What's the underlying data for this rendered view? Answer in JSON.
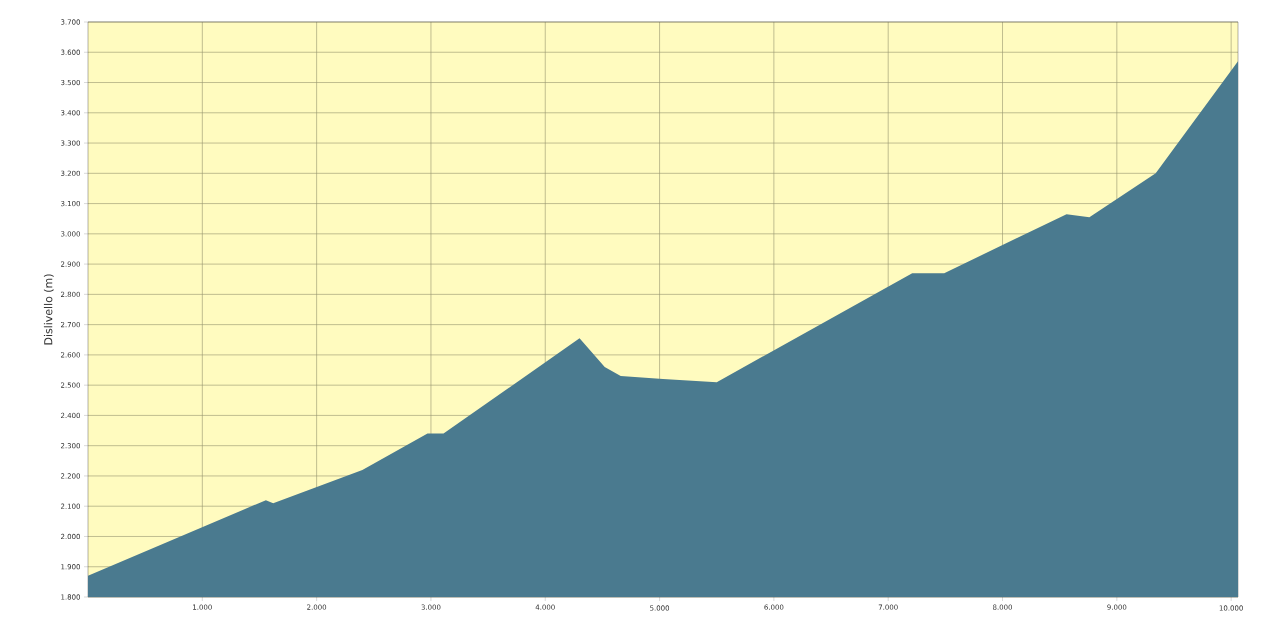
{
  "chart_data": {
    "type": "area",
    "ylabel": "Dislivello (m)",
    "color": "#4a7a8f",
    "x": [
      0,
      1556,
      1620,
      2400,
      2970,
      3110,
      4300,
      4520,
      4660,
      5030,
      5500,
      7210,
      7490,
      8560,
      8760,
      9340,
      10060
    ],
    "values": [
      1870,
      2120,
      2110,
      2220,
      2340,
      2340,
      2655,
      2560,
      2530,
      2520,
      2510,
      2870,
      2870,
      3065,
      3055,
      3200,
      3570
    ],
    "xlim": [
      0,
      10060
    ],
    "ylim": [
      1800,
      3700
    ],
    "xticks": [
      {
        "value": 1000,
        "label": "1.000"
      },
      {
        "value": 2000,
        "label": "2.000"
      },
      {
        "value": 3000,
        "label": "3.000"
      },
      {
        "value": 4000,
        "label": "4.000"
      },
      {
        "value": 5000,
        "label": "5.000"
      },
      {
        "value": 6000,
        "label": "6.000"
      },
      {
        "value": 7000,
        "label": "7.000"
      },
      {
        "value": 8000,
        "label": "8.000"
      },
      {
        "value": 9000,
        "label": "9.000"
      },
      {
        "value": 10000,
        "label": "10.000"
      }
    ],
    "yticks": [
      {
        "value": 1800,
        "label": "1.800"
      },
      {
        "value": 1900,
        "label": "1.900"
      },
      {
        "value": 2000,
        "label": "2.000"
      },
      {
        "value": 2100,
        "label": "2.100"
      },
      {
        "value": 2200,
        "label": "2.200"
      },
      {
        "value": 2300,
        "label": "2.300"
      },
      {
        "value": 2400,
        "label": "2.400"
      },
      {
        "value": 2500,
        "label": "2.500"
      },
      {
        "value": 2600,
        "label": "2.600"
      },
      {
        "value": 2700,
        "label": "2.700"
      },
      {
        "value": 2800,
        "label": "2.800"
      },
      {
        "value": 2900,
        "label": "2.900"
      },
      {
        "value": 3000,
        "label": "3.000"
      },
      {
        "value": 3100,
        "label": "3.100"
      },
      {
        "value": 3200,
        "label": "3.200"
      },
      {
        "value": 3300,
        "label": "3.300"
      },
      {
        "value": 3400,
        "label": "3.400"
      },
      {
        "value": 3500,
        "label": "3.500"
      },
      {
        "value": 3600,
        "label": "3.600"
      },
      {
        "value": 3700,
        "label": "3.700"
      }
    ],
    "grid": true
  }
}
